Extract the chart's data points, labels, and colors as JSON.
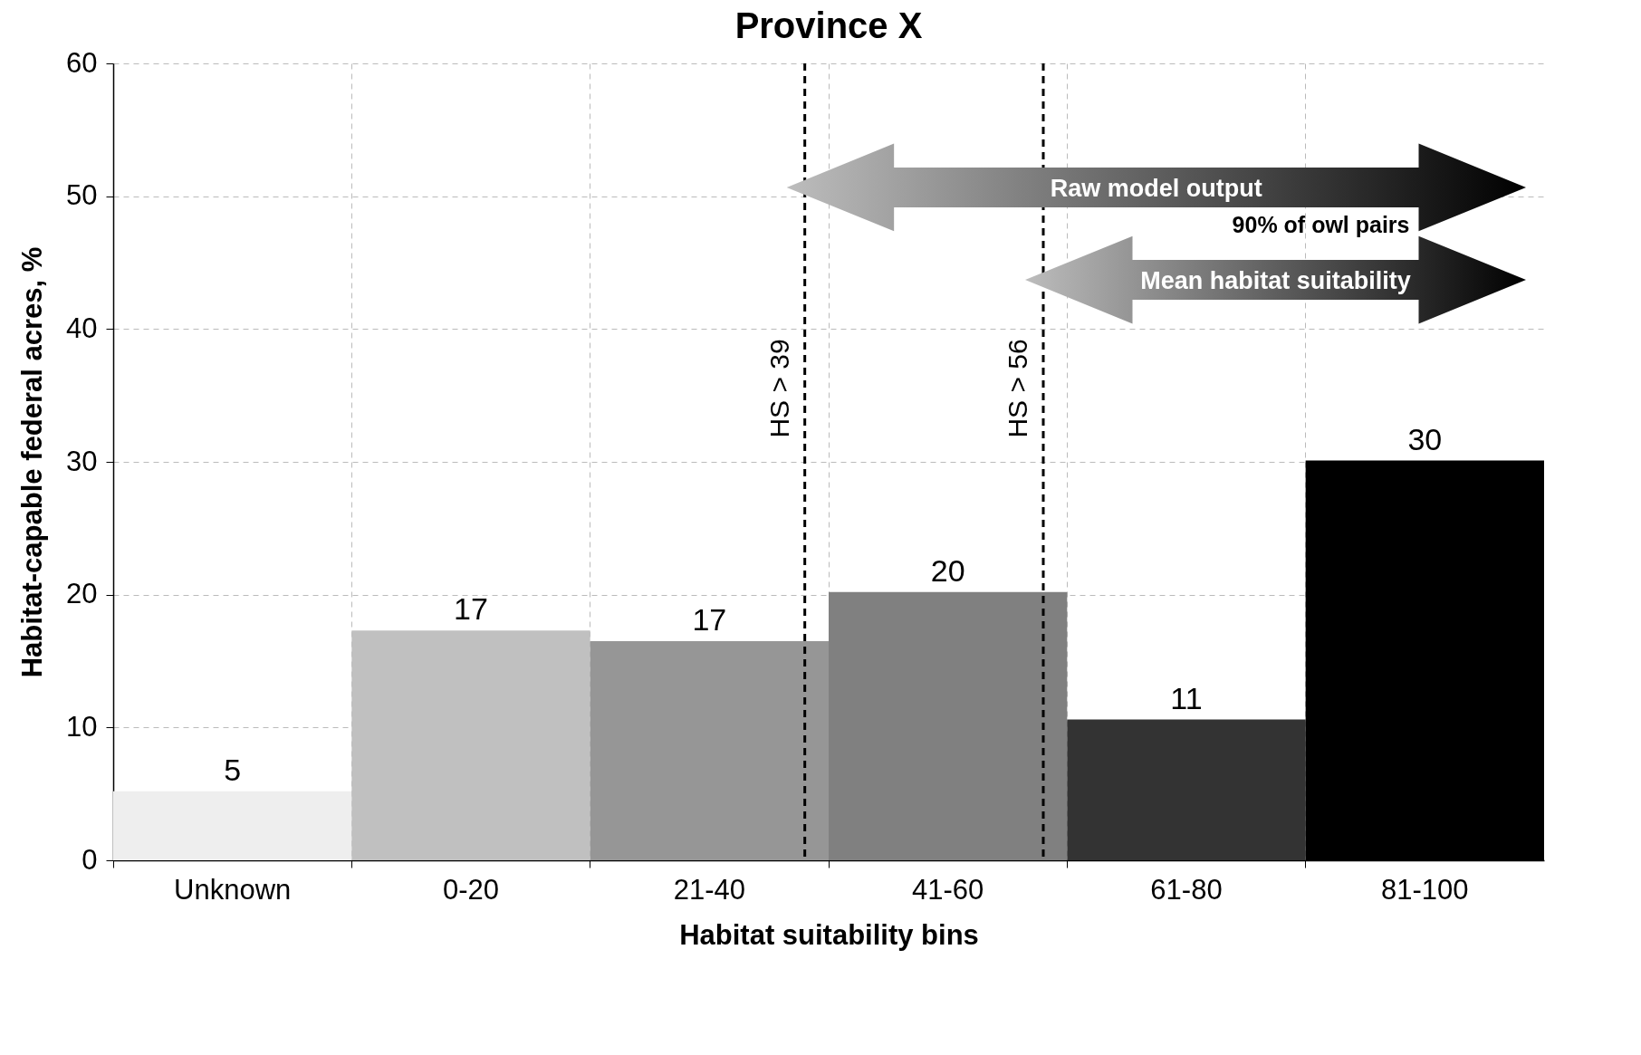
{
  "chart_data": {
    "type": "bar",
    "title": "Province X",
    "xlabel": "Habitat suitability bins",
    "ylabel": "Habitat-capable federal acres, %",
    "categories": [
      "Unknown",
      "0-20",
      "21-40",
      "41-60",
      "61-80",
      "81-100"
    ],
    "values": [
      5.2,
      17.3,
      16.5,
      20.2,
      10.6,
      30.1
    ],
    "colors": [
      "#eeeeee",
      "#c0c0c0",
      "#969696",
      "#808080",
      "#333333",
      "#000000"
    ],
    "value_labels": [
      "5",
      "17",
      "17",
      "20",
      "11",
      "30"
    ],
    "ylim": [
      0,
      60
    ],
    "yticks": [
      0,
      10,
      20,
      30,
      40,
      50,
      60
    ],
    "grid": true,
    "ref_lines": [
      {
        "axis": "x",
        "value": "21-40",
        "label": "HS > 39",
        "line_style": "dashed",
        "color": "#000000"
      },
      {
        "axis": "x",
        "value": "41-60",
        "label": "HS > 56",
        "line_style": "dashed",
        "color": "#000000"
      }
    ],
    "annotations": [
      "Raw model output",
      "90% of owl pairs",
      "Mean habitat suitability"
    ]
  }
}
